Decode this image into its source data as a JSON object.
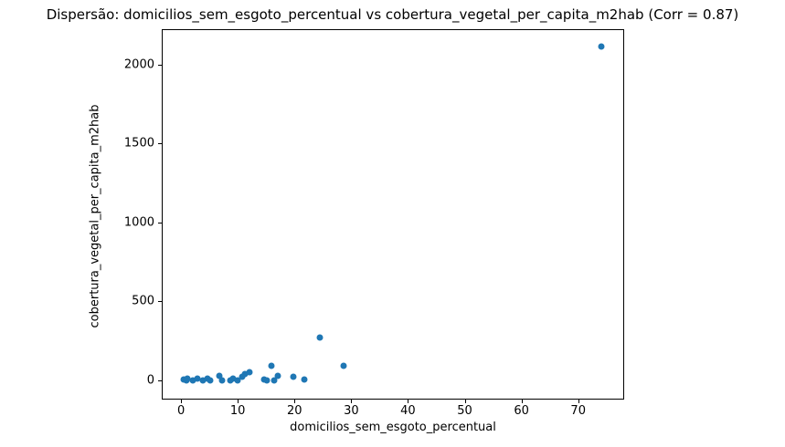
{
  "chart_data": {
    "type": "scatter",
    "title": "Dispersão: domicilios_sem_esgoto_percentual vs cobertura_vegetal_per_capita_m2hab (Corr = 0.87)",
    "xlabel": "domicilios_sem_esgoto_percentual",
    "ylabel": "cobertura_vegetal_per_capita_m2hab",
    "correlation": 0.87,
    "marker_color": "#1f77b4",
    "background_color": "#ffffff",
    "grid": false,
    "legend_position": "none",
    "xlim": [
      -3.4,
      78.1
    ],
    "ylim": [
      -121,
      2223
    ],
    "xticks": [
      0,
      10,
      20,
      30,
      40,
      50,
      60,
      70
    ],
    "yticks": [
      0,
      500,
      1000,
      1500,
      2000
    ],
    "points": [
      [
        0.4,
        4
      ],
      [
        0.9,
        0
      ],
      [
        1.1,
        13
      ],
      [
        2.1,
        3
      ],
      [
        2.9,
        13
      ],
      [
        3.8,
        2
      ],
      [
        4.6,
        9
      ],
      [
        5.2,
        3
      ],
      [
        6.8,
        27
      ],
      [
        7.3,
        2
      ],
      [
        8.6,
        0
      ],
      [
        9.2,
        12
      ],
      [
        10.0,
        2
      ],
      [
        10.7,
        21
      ],
      [
        11.2,
        38
      ],
      [
        12.0,
        52
      ],
      [
        14.6,
        8
      ],
      [
        15.1,
        1
      ],
      [
        16.0,
        95
      ],
      [
        16.4,
        3
      ],
      [
        17.1,
        28
      ],
      [
        19.8,
        24
      ],
      [
        21.8,
        4
      ],
      [
        24.4,
        272
      ],
      [
        28.7,
        92
      ],
      [
        74.1,
        2113
      ]
    ]
  }
}
